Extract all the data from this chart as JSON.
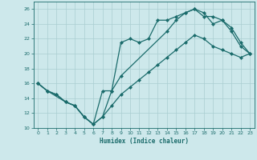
{
  "xlabel": "Humidex (Indice chaleur)",
  "xlim": [
    -0.5,
    23.5
  ],
  "ylim": [
    10,
    27
  ],
  "xticks": [
    0,
    1,
    2,
    3,
    4,
    5,
    6,
    7,
    8,
    9,
    10,
    11,
    12,
    13,
    14,
    15,
    16,
    17,
    18,
    19,
    20,
    21,
    22,
    23
  ],
  "yticks": [
    10,
    12,
    14,
    16,
    18,
    20,
    22,
    24,
    26
  ],
  "bg_color": "#cde8eb",
  "grid_color": "#aacdd1",
  "line_color": "#1a6b6b",
  "line1_x": [
    0,
    1,
    2,
    3,
    4,
    5,
    6,
    7,
    8,
    9,
    10,
    11,
    12,
    13,
    14,
    15,
    16,
    17,
    18,
    19,
    20,
    21,
    22,
    23
  ],
  "line1_y": [
    16,
    15,
    14.5,
    13.5,
    13.0,
    11.5,
    10.5,
    15.0,
    15.0,
    21.5,
    22.0,
    21.5,
    22.0,
    24.5,
    24.5,
    25.0,
    25.5,
    26.0,
    25.0,
    25.0,
    24.5,
    23.0,
    21.0,
    20.0
  ],
  "line2_x": [
    0,
    1,
    3,
    4,
    5,
    6,
    7,
    8,
    9,
    14,
    15,
    16,
    17,
    18,
    19,
    20,
    21,
    22,
    23
  ],
  "line2_y": [
    16,
    15,
    13.5,
    13.0,
    11.5,
    10.5,
    11.5,
    15.0,
    17.0,
    23.0,
    24.5,
    25.5,
    26.0,
    25.5,
    24.0,
    24.5,
    23.5,
    21.5,
    20.0
  ],
  "line3_x": [
    0,
    1,
    2,
    3,
    4,
    5,
    6,
    7,
    8,
    9,
    10,
    11,
    12,
    13,
    14,
    15,
    16,
    17,
    18,
    19,
    20,
    21,
    22,
    23
  ],
  "line3_y": [
    16,
    15,
    14.5,
    13.5,
    13.0,
    11.5,
    10.5,
    11.5,
    13.0,
    14.5,
    15.5,
    16.5,
    17.5,
    18.5,
    19.5,
    20.5,
    21.5,
    22.5,
    22.0,
    21.0,
    20.5,
    20.0,
    19.5,
    20.0
  ]
}
